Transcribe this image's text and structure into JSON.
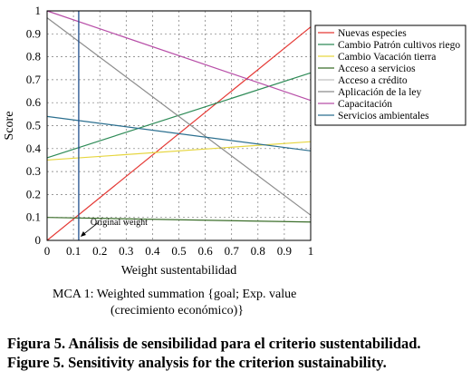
{
  "chart_data": {
    "type": "line",
    "xlabel": "Weight sustentabilidad",
    "ylabel": "Score",
    "xlim": [
      0,
      1
    ],
    "ylim": [
      0,
      1
    ],
    "x_ticks": [
      "0",
      "0.1",
      "0.2",
      "0.3",
      "0.4",
      "0.5",
      "0.6",
      "0.7",
      "0.8",
      "0.9",
      "1"
    ],
    "y_ticks": [
      "0",
      "0.1",
      "0.2",
      "0.3",
      "0.4",
      "0.5",
      "0.6",
      "0.7",
      "0.8",
      "0.9",
      "1"
    ],
    "grid": true,
    "legend_position": "right",
    "reference_line": {
      "x": 0.12,
      "label": "Original weight",
      "color": "#1f4e8c"
    },
    "series": [
      {
        "name": "Nuevas especies",
        "color": "#e53935",
        "x": [
          0,
          1
        ],
        "y": [
          0.0,
          0.93
        ]
      },
      {
        "name": "Cambio Patrón cultivos riego",
        "color": "#2e8b57",
        "x": [
          0,
          1
        ],
        "y": [
          0.36,
          0.73
        ]
      },
      {
        "name": "Cambio Vacación tierra",
        "color": "#e6d640",
        "x": [
          0,
          1
        ],
        "y": [
          0.35,
          0.43
        ]
      },
      {
        "name": "Acceso a servicios",
        "color": "#3b6e2a",
        "x": [
          0,
          1
        ],
        "y": [
          0.1,
          0.08
        ]
      },
      {
        "name": "Acceso a crédito",
        "color": "#c0c0c0",
        "x": [
          0,
          1
        ],
        "y": [
          1.0,
          1.0
        ]
      },
      {
        "name": "Aplicación de la ley",
        "color": "#8c8c8c",
        "x": [
          0,
          1
        ],
        "y": [
          0.97,
          0.11
        ]
      },
      {
        "name": "Capacitación",
        "color": "#b84fa8",
        "x": [
          0,
          1
        ],
        "y": [
          1.0,
          0.61
        ]
      },
      {
        "name": "Servicios ambientales",
        "color": "#2b6f8f",
        "x": [
          0,
          1
        ],
        "y": [
          0.54,
          0.39
        ]
      }
    ]
  },
  "mca_caption": {
    "line1": "MCA 1: Weighted summation {goal; Exp. value",
    "line2": "(crecimiento económico)}"
  },
  "figure_caption": {
    "spanish": "Figura 5. Análisis de sensibilidad para el criterio sustentabilidad.",
    "english": "Figure 5. Sensitivity analysis for the criterion sustainability."
  }
}
